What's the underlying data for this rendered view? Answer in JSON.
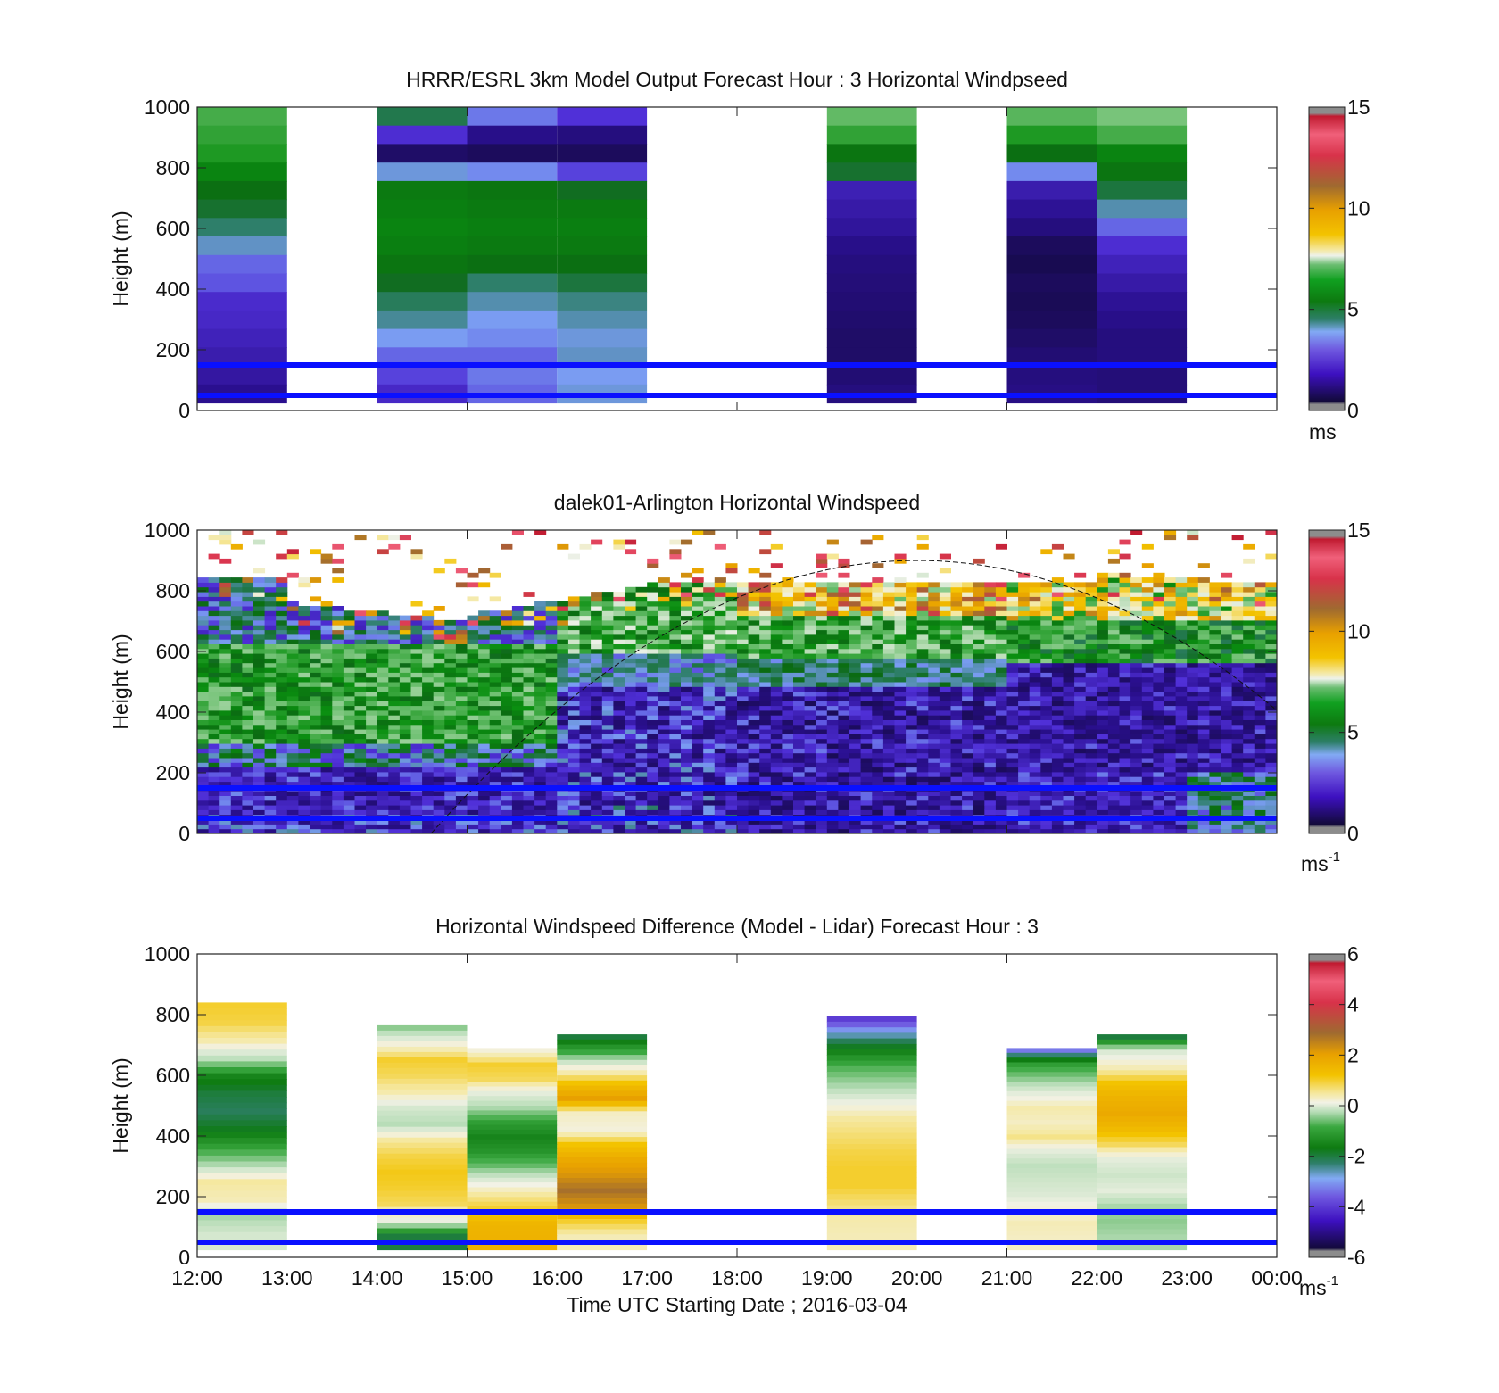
{
  "figure": {
    "xlabel": "Time UTC  Starting Date ; 2016-03-04",
    "xticks": [
      "12:00",
      "13:00",
      "14:00",
      "15:00",
      "16:00",
      "17:00",
      "18:00",
      "19:00",
      "20:00",
      "21:00",
      "22:00",
      "23:00",
      "00:00"
    ]
  },
  "chart_data": [
    {
      "type": "heatmap",
      "title": "HRRR/ESRL 3km Model Output   Forecast Hour : 3 Horizontal Windpseed",
      "ylabel": "Height (m)",
      "ylim": [
        0,
        1000
      ],
      "yticks": [
        "0",
        "200",
        "400",
        "600",
        "800",
        "1000"
      ],
      "colorbar": {
        "ticks": [
          "0",
          "5",
          "10",
          "15"
        ],
        "range": [
          0,
          15
        ],
        "unit": "ms",
        "unit_sup": ""
      },
      "reference_lines_m": [
        50,
        150
      ],
      "reference_line_color": "#0a10ff",
      "columns": [
        {
          "hour": 12,
          "top": 1000,
          "bottom": 25,
          "values": [
            5.8,
            5.6,
            5.4,
            5.0,
            4.6,
            4.3,
            3.9,
            3.5,
            3.0,
            2.9,
            2.5,
            2.4,
            2.2,
            2.0,
            1.8,
            1.5
          ]
        },
        {
          "hour": 14,
          "top": 1000,
          "bottom": 25,
          "values": [
            4.1,
            2.6,
            0.8,
            3.4,
            4.8,
            4.9,
            5.0,
            4.9,
            4.7,
            4.4,
            4.0,
            3.7,
            3.3,
            3.0,
            2.8,
            2.4
          ]
        },
        {
          "hour": 15,
          "top": 1000,
          "bottom": 25,
          "values": [
            3.1,
            1.4,
            0.6,
            3.2,
            4.7,
            4.8,
            4.9,
            4.8,
            4.6,
            3.9,
            3.6,
            3.3,
            3.2,
            3.0,
            3.1,
            3.0
          ]
        },
        {
          "hour": 16,
          "top": 1000,
          "bottom": 25,
          "values": [
            2.7,
            1.2,
            0.6,
            2.8,
            4.4,
            4.8,
            4.9,
            4.8,
            4.6,
            4.2,
            3.8,
            3.6,
            3.4,
            3.5,
            3.3,
            3.4
          ]
        },
        {
          "hour": 19,
          "top": 1000,
          "bottom": 25,
          "values": [
            6.1,
            5.6,
            4.7,
            4.3,
            2.1,
            1.9,
            1.7,
            1.4,
            1.2,
            1.1,
            1.0,
            0.9,
            0.8,
            0.8,
            1.0,
            1.2
          ]
        },
        {
          "hour": 21,
          "top": 1000,
          "bottom": 25,
          "values": [
            6.0,
            5.4,
            4.6,
            3.2,
            2.0,
            1.6,
            1.2,
            0.6,
            0.4,
            0.6,
            0.5,
            0.6,
            0.8,
            1.0,
            1.2,
            1.3
          ]
        },
        {
          "hour": 22,
          "top": 1000,
          "bottom": 25,
          "values": [
            6.3,
            5.8,
            5.0,
            4.7,
            4.2,
            3.6,
            3.0,
            2.6,
            2.2,
            1.9,
            1.6,
            1.4,
            1.2,
            1.2,
            1.1,
            1.1
          ]
        }
      ]
    },
    {
      "type": "heatmap",
      "title": "dalek01-Arlington  Horizontal Windspeed",
      "ylabel": "Height (m)",
      "ylim": [
        0,
        1000
      ],
      "yticks": [
        "0",
        "200",
        "400",
        "600",
        "800",
        "1000"
      ],
      "colorbar": {
        "ticks": [
          "0",
          "5",
          "10",
          "15"
        ],
        "range": [
          0,
          15
        ],
        "unit": "ms",
        "unit_sup": "-1"
      },
      "reference_lines_m": [
        50,
        150
      ],
      "reference_line_color": "#0a10ff",
      "overlay_curve": "dashed boundary layer height line"
    },
    {
      "type": "heatmap",
      "title": "Horizontal Windspeed Difference (Model - Lidar) Forecast Hour : 3",
      "ylabel": "Height (m)",
      "ylim": [
        0,
        1000
      ],
      "yticks": [
        "0",
        "200",
        "400",
        "600",
        "800",
        "1000"
      ],
      "colorbar": {
        "ticks": [
          "-6",
          "-4",
          "-2",
          "0",
          "2",
          "4",
          "6"
        ],
        "range": [
          -6,
          6
        ],
        "unit": "ms",
        "unit_sup": "-1"
      },
      "reference_lines_m": [
        50,
        150
      ],
      "reference_line_color": "#0a10ff",
      "columns": [
        {
          "hour": 12,
          "top": 840,
          "bottom": 25,
          "values": [
            1.0,
            0.9,
            0.4,
            -0.8,
            -2.5,
            -3.0,
            -3.2,
            -2.8,
            -2.0,
            -1.0,
            0.5,
            0.3,
            -1.0,
            -0.5
          ]
        },
        {
          "hour": 14,
          "top": 765,
          "bottom": 25,
          "values": [
            -1.2,
            0.0,
            1.0,
            0.8,
            0.4,
            -0.5,
            -0.9,
            0.5,
            0.9,
            1.1,
            1.0,
            0.8,
            -0.2,
            -3.0
          ]
        },
        {
          "hour": 15,
          "top": 690,
          "bottom": 25,
          "values": [
            0.0,
            1.0,
            0.8,
            -0.3,
            -1.0,
            -2.0,
            -2.5,
            -2.2,
            -1.5,
            -0.4,
            0.5,
            1.0,
            1.5,
            1.6
          ]
        },
        {
          "hour": 16,
          "top": 735,
          "bottom": 25,
          "values": [
            -3.0,
            -1.8,
            0.0,
            1.2,
            2.0,
            0.2,
            0.0,
            1.2,
            1.8,
            2.2,
            2.8,
            2.2,
            1.0,
            0.3
          ]
        },
        {
          "hour": 19,
          "top": 795,
          "bottom": 25,
          "values": [
            -4.5,
            -3.5,
            -2.5,
            -1.6,
            -1.0,
            -0.2,
            0.5,
            0.7,
            0.9,
            1.0,
            1.0,
            0.7,
            0.4,
            0.3
          ]
        },
        {
          "hour": 21,
          "top": 690,
          "bottom": 25,
          "values": [
            -4.0,
            -2.0,
            -1.2,
            -0.3,
            0.4,
            0.2,
            0.6,
            -0.3,
            -0.8,
            -0.6,
            -0.4,
            0.0,
            0.3,
            0.2
          ]
        },
        {
          "hour": 22,
          "top": 735,
          "bottom": 25,
          "values": [
            -3.0,
            -0.4,
            0.3,
            1.2,
            1.6,
            1.8,
            1.4,
            0.8,
            -0.3,
            -0.6,
            -0.3,
            -1.0,
            -1.2,
            -1.0
          ]
        }
      ]
    }
  ]
}
